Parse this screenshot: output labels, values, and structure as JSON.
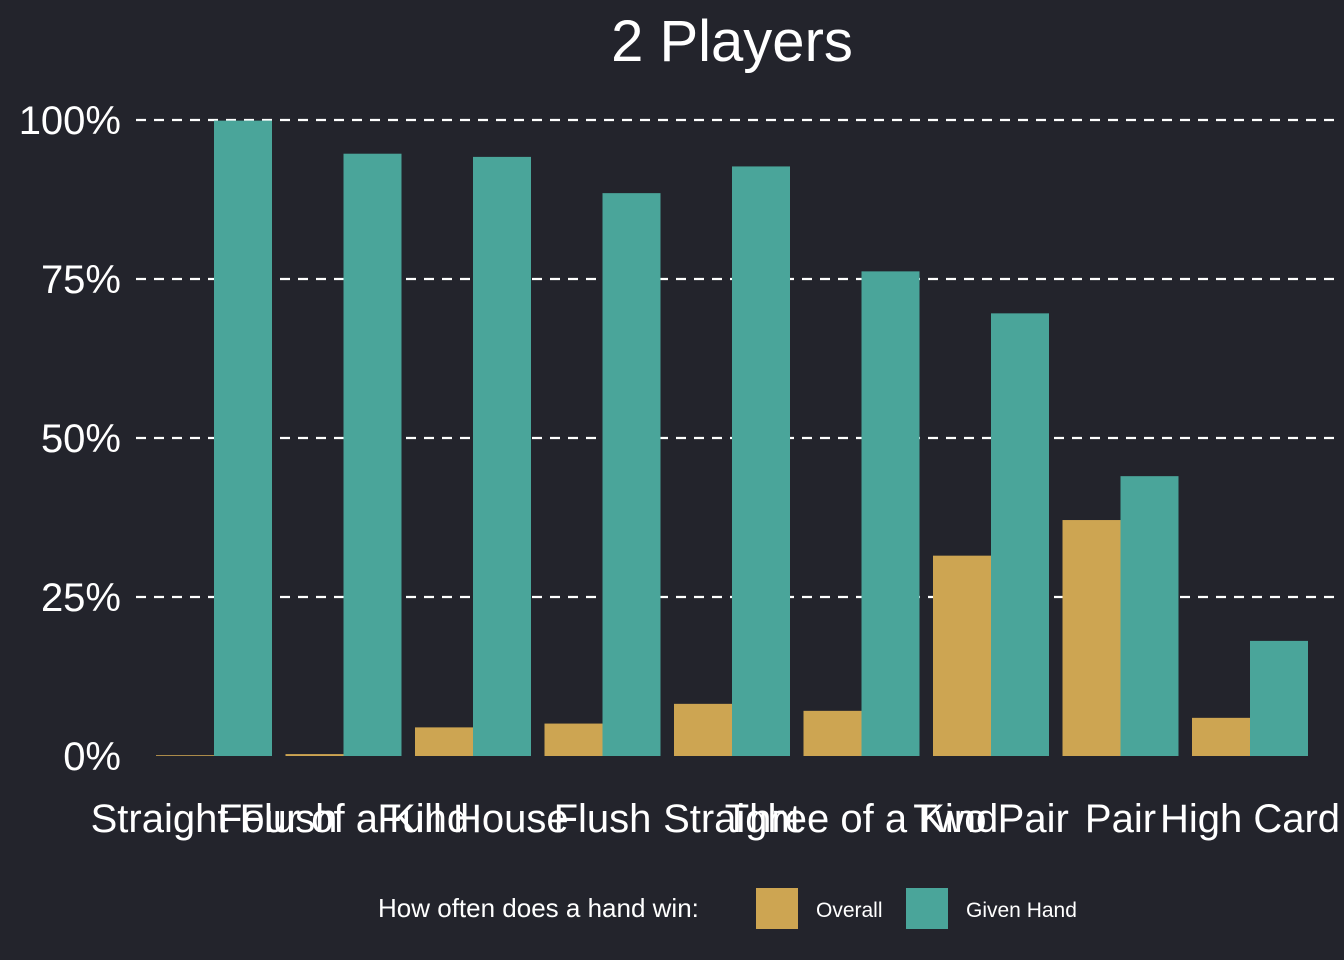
{
  "chart_data": {
    "type": "bar",
    "title": "2 Players",
    "xlabel": "",
    "ylabel": "",
    "categories": [
      "Straight Flush",
      "Four of a Kind",
      "Full House",
      "Flush",
      "Straight",
      "Three of a Kind",
      "Two Pair",
      "Pair",
      "High Card"
    ],
    "series": [
      {
        "name": "Overall",
        "color": "#cda552",
        "values": [
          0.0002,
          0.003,
          0.045,
          0.051,
          0.082,
          0.071,
          0.315,
          0.371,
          0.06
        ]
      },
      {
        "name": "Given Hand",
        "color": "#4aa59a",
        "values": [
          0.999,
          0.947,
          0.942,
          0.885,
          0.927,
          0.762,
          0.696,
          0.44,
          0.181
        ]
      }
    ],
    "ylim": [
      0,
      1
    ],
    "yticks": [
      0,
      0.25,
      0.5,
      0.75,
      1
    ],
    "yticklabels": [
      "0%",
      "25%",
      "50%",
      "75%",
      "100%"
    ],
    "grid": "horizontal dashed",
    "legend": {
      "position": "bottom",
      "title": "How often does a hand win:"
    },
    "background": "#23242c"
  }
}
